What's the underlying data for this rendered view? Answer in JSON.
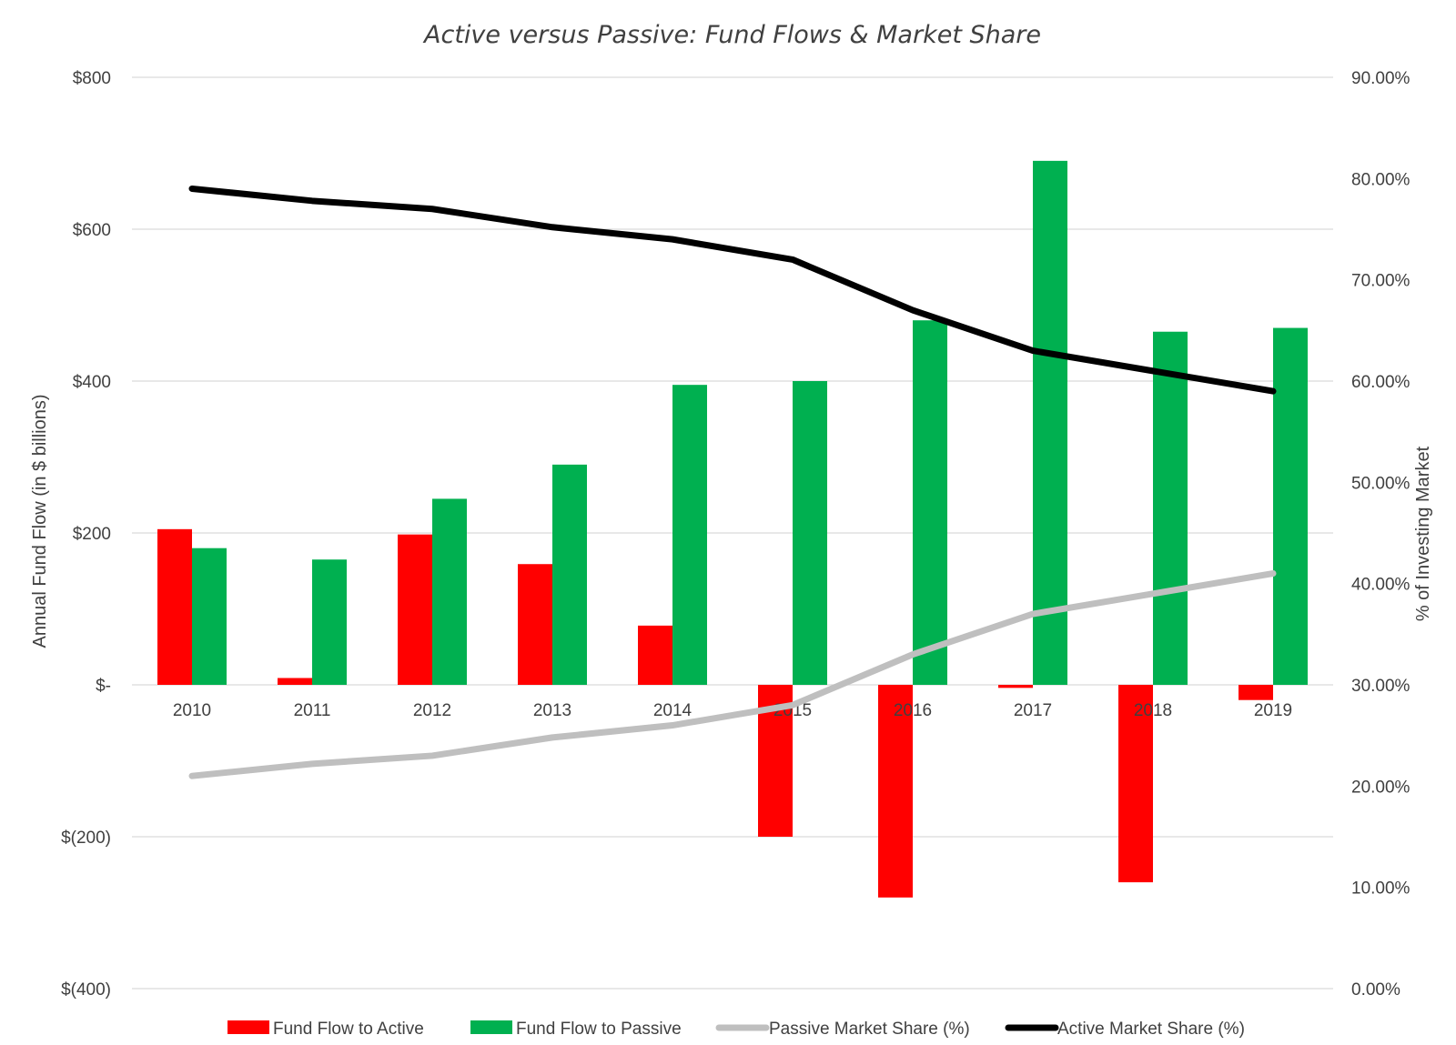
{
  "chart_data": {
    "type": "bar",
    "title": "Active versus Passive: Fund Flows & Market Share",
    "categories": [
      "2010",
      "2011",
      "2012",
      "2013",
      "2014",
      "2015",
      "2016",
      "2017",
      "2018",
      "2019"
    ],
    "series": [
      {
        "name": "Fund Flow to Active",
        "kind": "bar",
        "axis": "left",
        "color": "#ff0000",
        "values": [
          205,
          9,
          198,
          159,
          78,
          -200,
          -280,
          -4,
          -260,
          -20
        ]
      },
      {
        "name": "Fund Flow to Passive",
        "kind": "bar",
        "axis": "left",
        "color": "#00b050",
        "values": [
          180,
          165,
          245,
          290,
          395,
          400,
          480,
          690,
          465,
          470
        ]
      },
      {
        "name": "Passive Market Share (%)",
        "kind": "line",
        "axis": "right",
        "color": "#bfbfbf",
        "values": [
          21.0,
          22.2,
          23.0,
          24.8,
          26.0,
          28.0,
          33.0,
          37.0,
          39.0,
          41.0
        ]
      },
      {
        "name": "Active Market Share (%)",
        "kind": "line",
        "axis": "right",
        "color": "#000000",
        "values": [
          79.0,
          77.8,
          77.0,
          75.2,
          74.0,
          72.0,
          67.0,
          63.0,
          61.0,
          59.0
        ]
      }
    ],
    "ylabel": "Annual Fund Flow (in $ billions)",
    "y2label": "% of Investing Market",
    "ylim": [
      -400,
      800
    ],
    "y2lim": [
      0,
      90
    ],
    "y_ticks": [
      {
        "value": 800,
        "label": "$800"
      },
      {
        "value": 600,
        "label": "$600"
      },
      {
        "value": 400,
        "label": "$400"
      },
      {
        "value": 200,
        "label": "$200"
      },
      {
        "value": 0,
        "label": "$-"
      },
      {
        "value": -200,
        "label": "$(200)"
      },
      {
        "value": -400,
        "label": "$(400)"
      }
    ],
    "y2_ticks": [
      {
        "value": 90,
        "label": "90.00%"
      },
      {
        "value": 80,
        "label": "80.00%"
      },
      {
        "value": 70,
        "label": "70.00%"
      },
      {
        "value": 60,
        "label": "60.00%"
      },
      {
        "value": 50,
        "label": "50.00%"
      },
      {
        "value": 40,
        "label": "40.00%"
      },
      {
        "value": 30,
        "label": "30.00%"
      },
      {
        "value": 20,
        "label": "20.00%"
      },
      {
        "value": 10,
        "label": "10.00%"
      },
      {
        "value": 0,
        "label": "0.00%"
      }
    ],
    "grid": true,
    "legend_position": "bottom"
  }
}
